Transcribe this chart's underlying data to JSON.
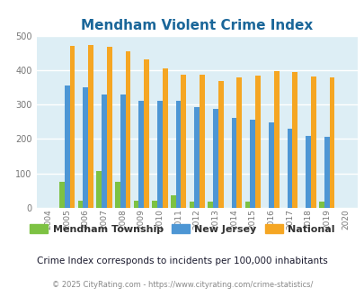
{
  "title": "Mendham Violent Crime Index",
  "years": [
    2004,
    2005,
    2006,
    2007,
    2008,
    2009,
    2010,
    2011,
    2012,
    2013,
    2014,
    2015,
    2016,
    2017,
    2018,
    2019,
    2020
  ],
  "mendham": [
    0,
    75,
    20,
    108,
    75,
    22,
    22,
    37,
    18,
    18,
    0,
    18,
    0,
    0,
    0,
    18,
    0
  ],
  "nj": [
    0,
    355,
    350,
    330,
    330,
    312,
    310,
    310,
    292,
    288,
    261,
    255,
    248,
    231,
    210,
    207,
    0
  ],
  "national": [
    0,
    470,
    473,
    467,
    455,
    432,
    405,
    387,
    387,
    368,
    378,
    384,
    398,
    394,
    381,
    380,
    0
  ],
  "mendham_color": "#7dc243",
  "nj_color": "#4d96d4",
  "national_color": "#f5a623",
  "bg_color": "#ddeef5",
  "title_color": "#1a6699",
  "grid_color": "#ffffff",
  "ylabel_max": 500,
  "yticks": [
    0,
    100,
    200,
    300,
    400,
    500
  ],
  "subtitle": "Crime Index corresponds to incidents per 100,000 inhabitants",
  "footer": "© 2025 CityRating.com - https://www.cityrating.com/crime-statistics/",
  "bar_width": 0.28,
  "legend_labels": [
    "Mendham Township",
    "New Jersey",
    "National"
  ],
  "subtitle_color": "#1a1a2e",
  "footer_color": "#888888",
  "tick_color": "#777777",
  "title_fontsize": 11,
  "legend_fontsize": 8,
  "subtitle_fontsize": 7.5,
  "footer_fontsize": 6
}
